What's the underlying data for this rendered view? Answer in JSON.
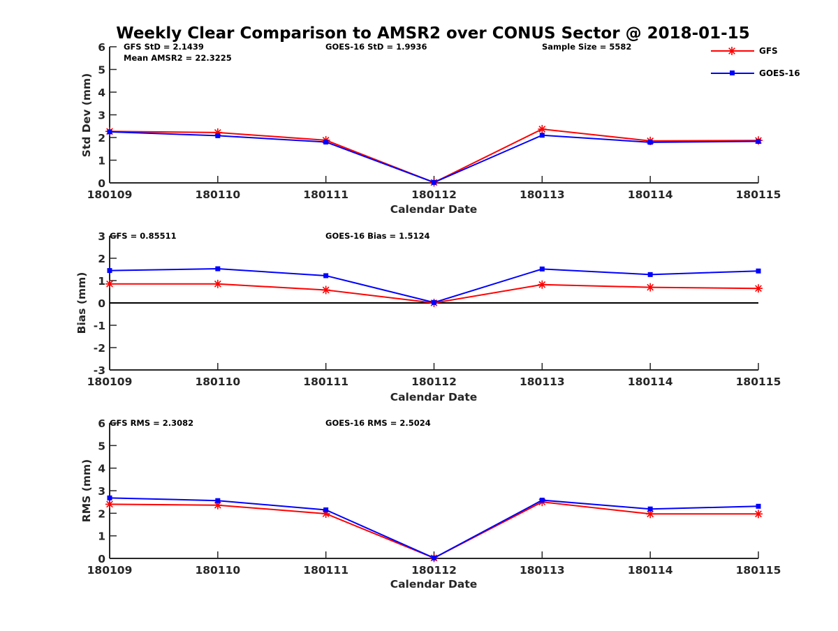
{
  "title": "Weekly Clear Comparison to AMSR2 over CONUS Sector @ 2018-01-15",
  "legend": {
    "position": "top-right",
    "items": [
      {
        "label": "GFS",
        "color": "#ff0000",
        "marker": "asterisk"
      },
      {
        "label": "GOES-16",
        "color": "#0000ff",
        "marker": "square"
      }
    ]
  },
  "chart_data": [
    {
      "type": "line",
      "title": "Weekly Clear Comparison to AMSR2 over CONUS Sector @ 2018-01-15",
      "xlabel": "Calendar Date",
      "ylabel": "Std Dev (mm)",
      "categories": [
        "180109",
        "180110",
        "180111",
        "180112",
        "180113",
        "180114",
        "180115"
      ],
      "ylim": [
        0,
        6
      ],
      "yticks": [
        "0",
        "1",
        "2",
        "3",
        "4",
        "5",
        "6"
      ],
      "grid": false,
      "annotations": [
        {
          "text": "GFS StD = 2.1439",
          "anchor": "left"
        },
        {
          "text": "Mean AMSR2 = 22.3225",
          "anchor": "left-second-line"
        },
        {
          "text": "GOES-16 StD = 1.9936",
          "anchor": "center"
        },
        {
          "text": "Sample Size = 5582",
          "anchor": "right"
        }
      ],
      "series": [
        {
          "name": "GFS",
          "color": "#ff0000",
          "values": [
            2.27,
            2.22,
            1.88,
            0.02,
            2.37,
            1.85,
            1.87
          ]
        },
        {
          "name": "GOES-16",
          "color": "#0000ff",
          "values": [
            2.25,
            2.08,
            1.8,
            0.02,
            2.1,
            1.79,
            1.83
          ]
        }
      ]
    },
    {
      "type": "line",
      "xlabel": "Calendar Date",
      "ylabel": "Bias (mm)",
      "categories": [
        "180109",
        "180110",
        "180111",
        "180112",
        "180113",
        "180114",
        "180115"
      ],
      "ylim": [
        -3,
        3
      ],
      "yticks": [
        "-3",
        "-2",
        "-1",
        "0",
        "1",
        "2",
        "3"
      ],
      "zero_line": true,
      "grid": false,
      "annotations": [
        {
          "text": "GFS = 0.85511",
          "anchor": "left"
        },
        {
          "text": "GOES-16 Bias  = 1.5124",
          "anchor": "center"
        }
      ],
      "series": [
        {
          "name": "GFS",
          "color": "#ff0000",
          "values": [
            0.85,
            0.85,
            0.58,
            0.0,
            0.82,
            0.7,
            0.65
          ]
        },
        {
          "name": "GOES-16",
          "color": "#0000ff",
          "values": [
            1.45,
            1.53,
            1.22,
            0.02,
            1.52,
            1.27,
            1.43
          ]
        }
      ]
    },
    {
      "type": "line",
      "xlabel": "Calendar Date",
      "ylabel": "RMS (mm)",
      "categories": [
        "180109",
        "180110",
        "180111",
        "180112",
        "180113",
        "180114",
        "180115"
      ],
      "ylim": [
        0,
        6
      ],
      "yticks": [
        "0",
        "1",
        "2",
        "3",
        "4",
        "5",
        "6"
      ],
      "grid": false,
      "annotations": [
        {
          "text": "GFS RMS = 2.3082",
          "anchor": "left"
        },
        {
          "text": "GOES-16 RMS = 2.5024",
          "anchor": "center"
        }
      ],
      "series": [
        {
          "name": "GFS",
          "color": "#ff0000",
          "values": [
            2.4,
            2.36,
            1.98,
            0.02,
            2.5,
            1.97,
            1.97
          ]
        },
        {
          "name": "GOES-16",
          "color": "#0000ff",
          "values": [
            2.68,
            2.56,
            2.15,
            0.02,
            2.58,
            2.19,
            2.31
          ]
        }
      ]
    }
  ]
}
